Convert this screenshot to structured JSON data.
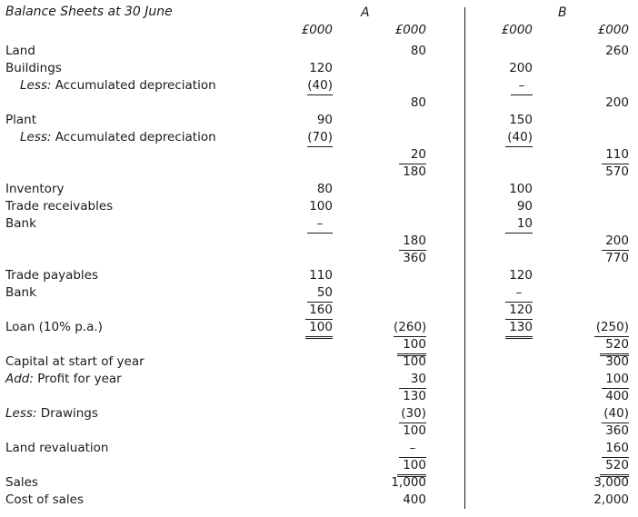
{
  "title": "Balance Sheets at 30 June",
  "companies": {
    "a": "A",
    "b": "B"
  },
  "unit": "£000",
  "rows": {
    "land": {
      "label": "Land",
      "a2": "80",
      "b2": "260"
    },
    "buildings": {
      "label": "Buildings",
      "a1": "120",
      "b1": "200"
    },
    "bld_dep": {
      "prefix": "Less:",
      "label": " Accumulated depreciation",
      "a1": "(40)",
      "b1": "–"
    },
    "bld_net": {
      "a2": "80",
      "b2": "200"
    },
    "plant": {
      "label": "Plant",
      "a1": "90",
      "b1": "150"
    },
    "plant_dep": {
      "prefix": "Less:",
      "label": " Accumulated depreciation",
      "a1": "(70)",
      "b1": "(40)"
    },
    "plant_net": {
      "a2": "20",
      "b2": "110"
    },
    "fixed_total": {
      "a2": "180",
      "b2": "570"
    },
    "inventory": {
      "label": "Inventory",
      "a1": "80",
      "b1": "100"
    },
    "receivables": {
      "label": "Trade receivables",
      "a1": "100",
      "b1": "90"
    },
    "bank": {
      "label": "Bank",
      "a1": "–",
      "b1": "10"
    },
    "current_tot": {
      "a2": "180",
      "b2": "200"
    },
    "total_assets": {
      "a2": "360",
      "b2": "770"
    },
    "payables": {
      "label": "Trade payables",
      "a1": "110",
      "b1": "120"
    },
    "bank_od": {
      "label": "Bank",
      "a1": "50",
      "b1": "–"
    },
    "liab_sub": {
      "a1": "160",
      "b1": "120"
    },
    "loan": {
      "label": "Loan (10% p.a.)",
      "a1": "100",
      "b1": "130",
      "a2": "(260)",
      "b2": "(250)"
    },
    "net_assets": {
      "a2": "100",
      "b2": "520"
    },
    "capital": {
      "label": "Capital at start of year",
      "a2": "100",
      "b2": "300"
    },
    "profit": {
      "prefix": "Add:",
      "label": " Profit for year",
      "a2": "30",
      "b2": "100"
    },
    "cap_sub": {
      "a2": "130",
      "b2": "400"
    },
    "drawings": {
      "prefix": "Less:",
      "label": " Drawings",
      "a2": "(30)",
      "b2": "(40)"
    },
    "cap_sub2": {
      "a2": "100",
      "b2": "360"
    },
    "revaluation": {
      "label": "Land revaluation",
      "a2": "–",
      "b2": "160"
    },
    "cap_total": {
      "a2": "100",
      "b2": "520"
    },
    "sales": {
      "label": "Sales",
      "a2": "1,000",
      "b2": "3,000"
    },
    "cost": {
      "label": "Cost of sales",
      "a2": "400",
      "b2": "2,000"
    }
  }
}
